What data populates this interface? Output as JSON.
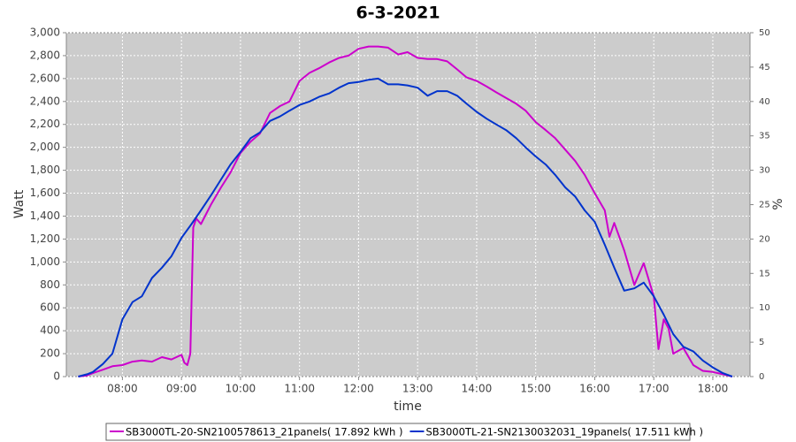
{
  "chart_data": {
    "type": "line",
    "title": "6-3-2021",
    "x_label": "time",
    "y_label": "Watt",
    "y2_label": "%",
    "xlim": [
      7.05,
      18.63
    ],
    "xticks": [
      {
        "value": 8,
        "label": "08:00"
      },
      {
        "value": 9,
        "label": "09:00"
      },
      {
        "value": 10,
        "label": "10:00"
      },
      {
        "value": 11,
        "label": "11:00"
      },
      {
        "value": 12,
        "label": "12:00"
      },
      {
        "value": 13,
        "label": "13:00"
      },
      {
        "value": 14,
        "label": "14:00"
      },
      {
        "value": 15,
        "label": "15:00"
      },
      {
        "value": 16,
        "label": "16:00"
      },
      {
        "value": 17,
        "label": "17:00"
      },
      {
        "value": 18,
        "label": "18:00"
      }
    ],
    "ylim": [
      0,
      3000
    ],
    "yticks": [
      0,
      200,
      400,
      600,
      800,
      {
        "value": 1000,
        "label": "1,000"
      },
      {
        "value": 1200,
        "label": "1,200"
      },
      {
        "value": 1400,
        "label": "1,400"
      },
      {
        "value": 1600,
        "label": "1,600"
      },
      {
        "value": 1800,
        "label": "1,800"
      },
      {
        "value": 2000,
        "label": "2,000"
      },
      {
        "value": 2200,
        "label": "2,200"
      },
      {
        "value": 2400,
        "label": "2,400"
      },
      {
        "value": 2600,
        "label": "2,600"
      },
      {
        "value": 2800,
        "label": "2,800"
      },
      {
        "value": 3000,
        "label": "3,000"
      }
    ],
    "y2lim": [
      0,
      50
    ],
    "y2ticks": [
      0,
      5,
      10,
      15,
      20,
      25,
      30,
      35,
      40,
      45,
      50
    ],
    "grid": true,
    "legend": "bottom",
    "series": [
      {
        "name": "SB3000TL-20-SN2100578613_21panels( 17.892 kWh )",
        "color": "#cc00cc",
        "x": [
          7.25,
          7.4,
          7.5,
          7.67,
          7.83,
          8.0,
          8.17,
          8.33,
          8.5,
          8.67,
          8.83,
          9.0,
          9.05,
          9.1,
          9.15,
          9.2,
          9.25,
          9.33,
          9.5,
          9.67,
          9.83,
          10.0,
          10.17,
          10.33,
          10.5,
          10.67,
          10.83,
          11.0,
          11.17,
          11.33,
          11.5,
          11.67,
          11.83,
          12.0,
          12.17,
          12.33,
          12.5,
          12.67,
          12.83,
          13.0,
          13.17,
          13.33,
          13.5,
          13.67,
          13.83,
          14.0,
          14.17,
          14.33,
          14.5,
          14.67,
          14.83,
          15.0,
          15.17,
          15.33,
          15.5,
          15.67,
          15.83,
          16.0,
          16.17,
          16.25,
          16.33,
          16.5,
          16.67,
          16.83,
          17.0,
          17.08,
          17.17,
          17.25,
          17.33,
          17.5,
          17.67,
          17.83,
          18.0,
          18.17,
          18.33
        ],
        "values": [
          0,
          10,
          30,
          60,
          90,
          100,
          130,
          140,
          130,
          170,
          150,
          190,
          120,
          100,
          200,
          1300,
          1380,
          1330,
          1500,
          1650,
          1780,
          1950,
          2050,
          2120,
          2300,
          2360,
          2400,
          2580,
          2650,
          2690,
          2740,
          2780,
          2800,
          2860,
          2880,
          2880,
          2870,
          2810,
          2830,
          2780,
          2770,
          2770,
          2750,
          2680,
          2610,
          2580,
          2530,
          2480,
          2430,
          2380,
          2320,
          2220,
          2150,
          2080,
          1980,
          1880,
          1760,
          1600,
          1450,
          1220,
          1340,
          1100,
          800,
          990,
          700,
          240,
          500,
          420,
          200,
          250,
          100,
          50,
          40,
          20,
          0
        ]
      },
      {
        "name": "SB3000TL-21-SN2130032031_19panels( 17.511 kWh )",
        "color": "#0033cc",
        "x": [
          7.25,
          7.4,
          7.5,
          7.67,
          7.83,
          8.0,
          8.17,
          8.33,
          8.5,
          8.67,
          8.83,
          9.0,
          9.17,
          9.33,
          9.5,
          9.67,
          9.83,
          10.0,
          10.17,
          10.33,
          10.5,
          10.67,
          10.83,
          11.0,
          11.17,
          11.33,
          11.5,
          11.67,
          11.83,
          12.0,
          12.17,
          12.33,
          12.5,
          12.67,
          12.83,
          13.0,
          13.17,
          13.33,
          13.5,
          13.67,
          13.83,
          14.0,
          14.17,
          14.33,
          14.5,
          14.67,
          14.83,
          15.0,
          15.17,
          15.33,
          15.5,
          15.67,
          15.83,
          16.0,
          16.17,
          16.33,
          16.5,
          16.67,
          16.83,
          17.0,
          17.17,
          17.33,
          17.5,
          17.67,
          17.83,
          18.0,
          18.17,
          18.33
        ],
        "values": [
          0,
          20,
          40,
          110,
          200,
          500,
          650,
          700,
          860,
          950,
          1050,
          1210,
          1330,
          1450,
          1580,
          1720,
          1850,
          1960,
          2080,
          2130,
          2230,
          2270,
          2320,
          2370,
          2400,
          2440,
          2470,
          2520,
          2560,
          2570,
          2590,
          2600,
          2550,
          2550,
          2540,
          2520,
          2450,
          2490,
          2490,
          2450,
          2380,
          2310,
          2250,
          2200,
          2150,
          2080,
          2000,
          1920,
          1850,
          1760,
          1650,
          1570,
          1450,
          1350,
          1150,
          950,
          750,
          770,
          820,
          700,
          540,
          370,
          260,
          220,
          140,
          80,
          30,
          0
        ]
      }
    ]
  }
}
